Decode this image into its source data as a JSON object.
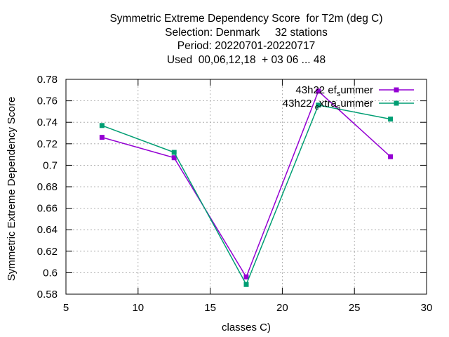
{
  "title_lines": [
    "Symmetric Extreme Dependency Score  for T2m (deg C)",
    "Selection: Denmark     32 stations",
    "Period: 20220701-20220717",
    "Used  00,06,12,18  + 03 06 ... 48"
  ],
  "chart_data": {
    "type": "line",
    "xlabel": "classes C)",
    "ylabel": "Symmetric Extreme Dependency Score",
    "xlim": [
      5,
      30
    ],
    "ylim": [
      0.58,
      0.78
    ],
    "xticks": [
      5,
      10,
      15,
      20,
      25,
      30
    ],
    "yticks": [
      0.58,
      0.6,
      0.62,
      0.64,
      0.66,
      0.68,
      0.7,
      0.72,
      0.74,
      0.76,
      0.78
    ],
    "ytick_labels": [
      "0.58",
      "0.6",
      "0.62",
      "0.64",
      "0.66",
      "0.68",
      "0.7",
      "0.72",
      "0.74",
      "0.76",
      "0.78"
    ],
    "grid": true,
    "legend_position": "top-right",
    "series": [
      {
        "name": "43h22_ef_summer",
        "legend_parts": {
          "main": "43h22",
          "sub": "ef",
          "sub2": "s",
          "tail": "ummer"
        },
        "color": "#9400d3",
        "x": [
          7.5,
          12.5,
          17.5,
          22.5,
          27.5
        ],
        "y": [
          0.726,
          0.707,
          0.596,
          0.769,
          0.708
        ]
      },
      {
        "name": "43h22_extra_summer",
        "legend_parts": {
          "main": "43h22",
          "sub": "e",
          "mid": "xtra",
          "sub2": "s",
          "tail": "ummer"
        },
        "color": "#009e73",
        "x": [
          7.5,
          12.5,
          17.5,
          22.5,
          27.5
        ],
        "y": [
          0.737,
          0.712,
          0.589,
          0.756,
          0.743
        ]
      }
    ]
  }
}
